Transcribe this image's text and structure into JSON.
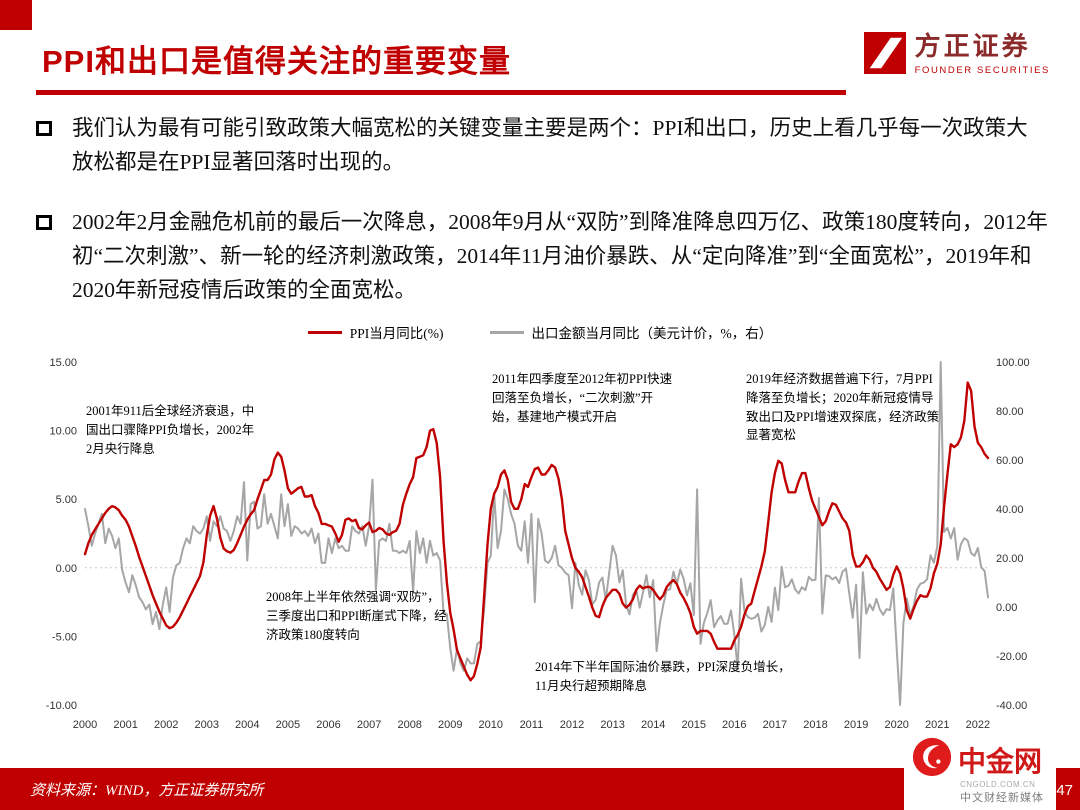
{
  "colors": {
    "accent_red": "#c00000",
    "ppi_line": "#c00000",
    "export_line": "#a6a6a6"
  },
  "header": {
    "title": "PPI和出口是值得关注的重要变量",
    "logo": {
      "name": "方正证券",
      "subtitle": "FOUNDER SECURITIES"
    }
  },
  "bullets": [
    "我们认为最有可能引致政策大幅宽松的关键变量主要是两个：PPI和出口，历史上看几乎每一次政策大放松都是在PPI显著回落时出现的。",
    "2002年2月金融危机前的最后一次降息，2008年9月从“双防”到降准降息四万亿、政策180度转向，2012年初“二次刺激”、新一轮的经济刺激政策，2014年11月油价暴跌、从“定向降准”到“全面宽松”，2019年和2020年新冠疫情后政策的全面宽松。"
  ],
  "chart_data": {
    "type": "line",
    "title": "",
    "legend_position": "top-center",
    "grid": "zero-line-only",
    "legend": [
      {
        "label": "PPI当月同比(%)",
        "color": "#c00000"
      },
      {
        "label": "出口金额当月同比（美元计价，%，右）",
        "color": "#a6a6a6"
      }
    ],
    "x_start": "2000-01",
    "x_end": "2022-04",
    "x_labels": [
      "2000",
      "2001",
      "2002",
      "2003",
      "2004",
      "2005",
      "2006",
      "2007",
      "2008",
      "2009",
      "2010",
      "2011",
      "2012",
      "2013",
      "2014",
      "2015",
      "2016",
      "2017",
      "2018",
      "2019",
      "2020",
      "2021",
      "2022"
    ],
    "left_axis": {
      "min": -10,
      "max": 15,
      "ticks": [
        "15.00",
        "10.00",
        "5.00",
        "0.00",
        "-5.00",
        "-10.00"
      ]
    },
    "right_axis": {
      "min": -40,
      "max": 100,
      "ticks": [
        "100.00",
        "80.00",
        "60.00",
        "40.00",
        "20.00",
        "0.00",
        "-20.00",
        "-40.00"
      ]
    },
    "series": [
      {
        "name": "PPI当月同比(%)",
        "axis": "left",
        "color": "#c00000",
        "width": 2.4,
        "z": 2,
        "data_name": "ppi-series-line",
        "values": [
          1.0,
          1.8,
          2.4,
          2.8,
          3.2,
          3.6,
          4.0,
          4.3,
          4.5,
          4.4,
          4.2,
          3.8,
          3.5,
          3.0,
          2.3,
          1.6,
          0.8,
          0.1,
          -0.6,
          -1.3,
          -2.0,
          -2.6,
          -3.2,
          -3.7,
          -4.2,
          -4.4,
          -4.3,
          -4.0,
          -3.6,
          -3.1,
          -2.6,
          -2.1,
          -1.6,
          -1.1,
          -0.6,
          0.4,
          2.4,
          3.8,
          4.5,
          3.6,
          2.2,
          1.4,
          1.2,
          1.1,
          1.3,
          1.8,
          2.4,
          3.0,
          3.5,
          3.9,
          4.2,
          5.0,
          5.7,
          6.4,
          6.4,
          6.8,
          7.9,
          8.4,
          8.1,
          7.1,
          5.8,
          5.4,
          5.6,
          5.8,
          5.9,
          5.2,
          5.2,
          5.3,
          4.5,
          4.0,
          3.2,
          3.2,
          3.1,
          3.0,
          2.5,
          1.9,
          2.4,
          3.5,
          3.6,
          3.4,
          3.5,
          2.9,
          2.8,
          3.1,
          3.3,
          2.6,
          2.7,
          2.9,
          2.8,
          2.5,
          2.4,
          2.6,
          2.7,
          3.2,
          4.6,
          5.4,
          6.1,
          6.6,
          8.0,
          8.1,
          8.2,
          8.8,
          10.0,
          10.1,
          9.1,
          6.6,
          2.0,
          -1.1,
          -3.3,
          -4.5,
          -6.0,
          -6.6,
          -7.2,
          -7.8,
          -8.2,
          -7.9,
          -7.0,
          -5.8,
          -2.1,
          1.7,
          4.3,
          5.4,
          5.9,
          6.8,
          7.1,
          6.4,
          4.8,
          4.3,
          4.3,
          5.0,
          6.1,
          5.9,
          6.6,
          7.2,
          7.3,
          6.8,
          6.8,
          7.1,
          7.5,
          7.3,
          6.5,
          5.0,
          2.7,
          1.7,
          0.7,
          0.0,
          -0.3,
          -0.7,
          -1.4,
          -2.1,
          -2.9,
          -3.5,
          -3.6,
          -2.8,
          -2.2,
          -1.9,
          -1.6,
          -1.6,
          -1.9,
          -2.6,
          -2.9,
          -2.7,
          -2.3,
          -1.6,
          -1.3,
          -1.5,
          -1.4,
          -1.4,
          -1.6,
          -2.0,
          -2.3,
          -2.0,
          -1.4,
          -1.1,
          -0.9,
          -1.2,
          -1.8,
          -2.2,
          -2.7,
          -3.3,
          -4.3,
          -4.8,
          -4.6,
          -4.6,
          -4.6,
          -4.8,
          -5.4,
          -5.9,
          -5.9,
          -5.9,
          -5.9,
          -5.9,
          -5.3,
          -4.9,
          -4.3,
          -3.4,
          -2.8,
          -2.6,
          -1.7,
          -0.8,
          0.1,
          1.2,
          3.3,
          5.5,
          6.9,
          7.8,
          7.6,
          6.4,
          5.5,
          5.5,
          5.5,
          6.3,
          6.9,
          6.9,
          5.8,
          4.9,
          4.3,
          3.7,
          3.1,
          3.4,
          4.1,
          4.7,
          4.6,
          4.1,
          3.6,
          3.3,
          2.7,
          0.9,
          0.1,
          0.1,
          0.4,
          0.9,
          0.6,
          0.0,
          -0.3,
          -0.8,
          -1.2,
          -1.6,
          -1.4,
          -0.5,
          0.1,
          -0.4,
          -1.5,
          -3.1,
          -3.7,
          -3.0,
          -2.4,
          -2.0,
          -2.1,
          -2.1,
          -1.5,
          -0.4,
          0.3,
          1.7,
          4.4,
          6.8,
          9.0,
          8.8,
          9.0,
          9.5,
          10.7,
          13.5,
          12.9,
          10.3,
          9.1,
          8.8,
          8.3,
          8.0
        ]
      },
      {
        "name": "出口金额当月同比（美元计价，%，右）",
        "axis": "right",
        "color": "#a6a6a6",
        "width": 2,
        "z": 1,
        "data_name": "export-series-line",
        "values": [
          40,
          33,
          25,
          30,
          34,
          38,
          26,
          32,
          29,
          24,
          28,
          15,
          10,
          6,
          13,
          9,
          4,
          2,
          -1,
          1,
          -7,
          -2,
          -9,
          1,
          8,
          -2,
          12,
          17,
          18,
          24,
          28,
          26,
          33,
          31,
          30,
          32,
          37,
          27,
          35,
          33,
          37,
          32,
          31,
          27,
          31,
          37,
          34,
          51,
          19,
          42,
          43,
          32,
          33,
          46,
          34,
          38,
          33,
          28,
          46,
          33,
          42,
          29,
          33,
          32,
          30,
          31,
          29,
          32,
          26,
          30,
          18,
          18,
          28,
          22,
          28,
          24,
          25,
          23,
          23,
          33,
          31,
          30,
          33,
          25,
          33,
          52,
          7,
          27,
          28,
          27,
          34,
          23,
          23,
          22,
          23,
          22,
          27,
          6,
          31,
          22,
          28,
          18,
          27,
          21,
          22,
          19,
          -2,
          -3,
          -17,
          -26,
          -17,
          -23,
          -26,
          -21,
          -23,
          -23,
          -15,
          -14,
          -1,
          18,
          21,
          46,
          24,
          31,
          48,
          44,
          38,
          34,
          25,
          23,
          35,
          18,
          38,
          2,
          36,
          30,
          19,
          18,
          20,
          25,
          17,
          16,
          14,
          13,
          -0.5,
          18,
          9,
          5,
          15,
          11,
          1,
          3,
          10,
          12,
          3,
          14,
          25,
          21,
          10,
          15,
          1,
          -3,
          5,
          7,
          -0.3,
          6,
          13,
          4,
          11,
          -18,
          -6.6,
          0.9,
          7,
          7.2,
          14.5,
          9.4,
          15.3,
          11.6,
          4.7,
          9.7,
          -3.3,
          48,
          -15,
          -6.4,
          -2.5,
          2.8,
          -8.3,
          -5.5,
          -3.7,
          -6.9,
          -6.8,
          -1.4,
          -11.2,
          -25.4,
          11.5,
          -1.8,
          -4.1,
          -4.8,
          -4.4,
          -2.8,
          -10,
          -7.3,
          0.1,
          -6.1,
          7.9,
          -1.3,
          16.4,
          8,
          8.7,
          11.3,
          7.2,
          5.5,
          8.1,
          6.9,
          12.3,
          10.9,
          11.1,
          44.5,
          -2.7,
          12.9,
          12.6,
          11.3,
          12.2,
          9.8,
          14.5,
          15.6,
          5.4,
          -4.4,
          9.1,
          -20.8,
          14.2,
          -2.7,
          1.1,
          -1.3,
          3.3,
          -1,
          -3.2,
          -0.9,
          -1.3,
          7.6,
          -17,
          -40,
          -6.6,
          3.5,
          -3.3,
          0.5,
          7.2,
          9.5,
          9.9,
          11.4,
          21.1,
          18.1,
          24.8,
          100,
          30.6,
          32.3,
          27.9,
          32.2,
          19.3,
          25.6,
          28.1,
          27.1,
          22,
          20.9,
          24.1,
          16.3,
          14.7,
          3.9
        ]
      }
    ],
    "annotations": [
      {
        "text": "2001年911后全球经济衰退，中国出口骤降PPI负增长，2002年2月央行降息"
      },
      {
        "text": "2008年上半年依然强调“双防”，三季度出口和PPI断崖式下降，经济政策180度转向"
      },
      {
        "text": "2011年四季度至2012年初PPI快速回落至负增长，“二次刺激”开始，基建地产模式开启"
      },
      {
        "text": "2014年下半年国际油价暴跌，PPI深度负增长，11月央行超预期降息"
      },
      {
        "text": "2019年经济数据普遍下行，7月PPI降落至负增长；2020年新冠疫情导致出口及PPI增速双探底，经济政策显著宽松"
      }
    ]
  },
  "footer": {
    "source": "资料来源：WIND，方正证券研究所",
    "page": "47"
  },
  "watermark": {
    "name": "中金网",
    "domain": "CNGOLD.COM.CN",
    "tagline": "中文财经新媒体"
  }
}
